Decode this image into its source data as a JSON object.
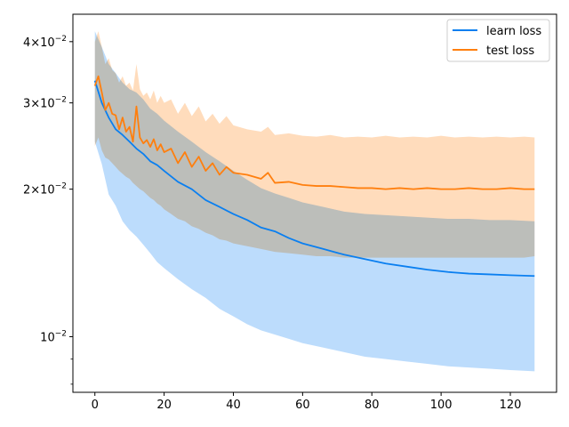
{
  "chart_data": {
    "type": "line",
    "title": "",
    "xlabel": "",
    "ylabel": "",
    "yscale": "log",
    "xlim": [
      -6.35,
      133.35
    ],
    "ylim": [
      0.0077,
      0.0455
    ],
    "grid": false,
    "legend_position": "top-right",
    "x_ticks": [
      0,
      20,
      40,
      60,
      80,
      100,
      120
    ],
    "x_tick_labels": [
      "0",
      "20",
      "40",
      "60",
      "80",
      "100",
      "120"
    ],
    "y_major_ticks": [
      0.04,
      0.03,
      0.02,
      0.01
    ],
    "y_major_tick_labels": [
      {
        "base": "4×10",
        "exp": "−2"
      },
      {
        "base": "3×10",
        "exp": "−2"
      },
      {
        "base": "2×10",
        "exp": "−2"
      },
      {
        "base": "10",
        "exp": "−2"
      }
    ],
    "y_minor_ticks": [
      0.008,
      0.009
    ],
    "series": [
      {
        "name": "learn loss",
        "color": "#0a7ff0",
        "band_color": "#bcdcfc",
        "x": [
          0,
          2,
          4,
          6,
          8,
          10,
          12,
          14,
          16,
          18,
          20,
          24,
          28,
          32,
          36,
          40,
          44,
          48,
          52,
          56,
          60,
          66,
          72,
          78,
          84,
          90,
          96,
          102,
          108,
          114,
          120,
          127
        ],
        "mean": [
          0.0333,
          0.03,
          0.028,
          0.0265,
          0.0258,
          0.025,
          0.0242,
          0.0236,
          0.0228,
          0.0224,
          0.0218,
          0.0207,
          0.02,
          0.019,
          0.0184,
          0.0178,
          0.0173,
          0.0167,
          0.0164,
          0.0159,
          0.0155,
          0.0151,
          0.0147,
          0.0144,
          0.0141,
          0.0139,
          0.0137,
          0.01355,
          0.01345,
          0.0134,
          0.01335,
          0.0133
        ],
        "lower": [
          0.025,
          0.0225,
          0.0195,
          0.0185,
          0.0172,
          0.0165,
          0.016,
          0.0154,
          0.0148,
          0.0142,
          0.0138,
          0.0131,
          0.0125,
          0.012,
          0.0114,
          0.011,
          0.0106,
          0.0103,
          0.0101,
          0.0099,
          0.0097,
          0.0095,
          0.0093,
          0.0091,
          0.009,
          0.0089,
          0.0088,
          0.0087,
          0.00865,
          0.0086,
          0.00855,
          0.0085
        ],
        "upper": [
          0.042,
          0.039,
          0.036,
          0.0345,
          0.033,
          0.032,
          0.0315,
          0.0305,
          0.0292,
          0.0285,
          0.0276,
          0.0262,
          0.025,
          0.0238,
          0.0228,
          0.0218,
          0.0209,
          0.0201,
          0.0196,
          0.0192,
          0.0188,
          0.0184,
          0.018,
          0.0178,
          0.0177,
          0.0176,
          0.0175,
          0.0174,
          0.0174,
          0.0173,
          0.0173,
          0.0172
        ]
      },
      {
        "name": "test loss",
        "color": "#ff7f0e",
        "band_color": "#ffdcbc",
        "x": [
          0,
          1,
          2,
          3,
          4,
          5,
          6,
          7,
          8,
          9,
          10,
          11,
          12,
          13,
          14,
          15,
          16,
          17,
          18,
          19,
          20,
          22,
          24,
          26,
          28,
          30,
          32,
          34,
          36,
          38,
          40,
          44,
          48,
          50,
          52,
          56,
          60,
          64,
          68,
          72,
          76,
          80,
          84,
          88,
          92,
          96,
          100,
          104,
          108,
          112,
          116,
          120,
          124,
          127
        ],
        "mean": [
          0.0325,
          0.034,
          0.0315,
          0.029,
          0.03,
          0.0285,
          0.0283,
          0.0265,
          0.028,
          0.0262,
          0.0268,
          0.025,
          0.0295,
          0.0255,
          0.0248,
          0.0252,
          0.0244,
          0.0253,
          0.024,
          0.0247,
          0.0238,
          0.0242,
          0.0226,
          0.0238,
          0.0222,
          0.0233,
          0.0218,
          0.0226,
          0.0214,
          0.0222,
          0.0216,
          0.0214,
          0.021,
          0.0216,
          0.0206,
          0.0207,
          0.0204,
          0.0203,
          0.0203,
          0.0202,
          0.0201,
          0.0201,
          0.02,
          0.0201,
          0.02,
          0.0201,
          0.02,
          0.02,
          0.0201,
          0.02,
          0.02,
          0.0201,
          0.02,
          0.02
        ],
        "lower": [
          0.0245,
          0.0255,
          0.024,
          0.0232,
          0.023,
          0.0226,
          0.0222,
          0.0218,
          0.0215,
          0.0212,
          0.021,
          0.0206,
          0.0203,
          0.02,
          0.0198,
          0.0195,
          0.0192,
          0.019,
          0.0187,
          0.0185,
          0.0182,
          0.0178,
          0.0174,
          0.0172,
          0.0168,
          0.0166,
          0.0163,
          0.0161,
          0.0158,
          0.0157,
          0.0155,
          0.0153,
          0.0151,
          0.015,
          0.0149,
          0.0148,
          0.0147,
          0.0146,
          0.0146,
          0.0145,
          0.0145,
          0.0145,
          0.0145,
          0.0145,
          0.0145,
          0.0145,
          0.0145,
          0.0145,
          0.0145,
          0.0145,
          0.0145,
          0.0145,
          0.0145,
          0.0146
        ],
        "upper": [
          0.04,
          0.042,
          0.039,
          0.036,
          0.037,
          0.035,
          0.0345,
          0.033,
          0.034,
          0.0325,
          0.033,
          0.0318,
          0.036,
          0.032,
          0.031,
          0.0315,
          0.0305,
          0.0318,
          0.03,
          0.031,
          0.03,
          0.0305,
          0.0285,
          0.03,
          0.0282,
          0.0295,
          0.0275,
          0.0285,
          0.0272,
          0.0282,
          0.027,
          0.0265,
          0.0262,
          0.0268,
          0.0258,
          0.026,
          0.0257,
          0.0256,
          0.0258,
          0.0255,
          0.0256,
          0.0255,
          0.0257,
          0.0255,
          0.0256,
          0.0255,
          0.0257,
          0.0255,
          0.0256,
          0.0255,
          0.0256,
          0.0255,
          0.0256,
          0.0255
        ]
      }
    ]
  }
}
